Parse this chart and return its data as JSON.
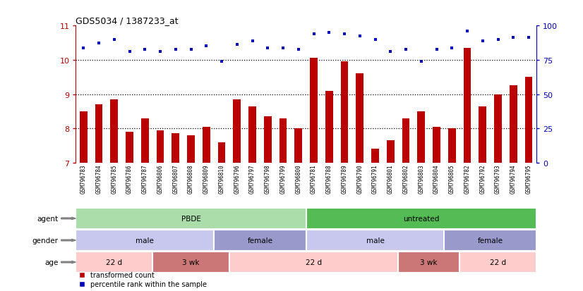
{
  "title": "GDS5034 / 1387233_at",
  "samples": [
    "GSM796783",
    "GSM796784",
    "GSM796785",
    "GSM796786",
    "GSM796787",
    "GSM796806",
    "GSM796807",
    "GSM796808",
    "GSM796809",
    "GSM796810",
    "GSM796796",
    "GSM796797",
    "GSM796798",
    "GSM796799",
    "GSM796800",
    "GSM796781",
    "GSM796788",
    "GSM796789",
    "GSM796790",
    "GSM796791",
    "GSM796801",
    "GSM796802",
    "GSM796803",
    "GSM796804",
    "GSM796805",
    "GSM796782",
    "GSM796792",
    "GSM796793",
    "GSM796794",
    "GSM796795"
  ],
  "bar_values": [
    8.5,
    8.7,
    8.85,
    7.9,
    8.3,
    7.95,
    7.85,
    7.8,
    8.05,
    7.6,
    8.85,
    8.65,
    8.35,
    8.3,
    8.0,
    10.05,
    9.1,
    9.95,
    9.6,
    7.4,
    7.65,
    8.3,
    8.5,
    8.05,
    8.0,
    10.35,
    8.65,
    9.0,
    9.25,
    9.5
  ],
  "percentile_values": [
    10.35,
    10.5,
    10.6,
    10.25,
    10.3,
    10.25,
    10.3,
    10.3,
    10.4,
    9.95,
    10.45,
    10.55,
    10.35,
    10.35,
    10.3,
    10.75,
    10.8,
    10.75,
    10.7,
    10.6,
    10.25,
    10.3,
    9.95,
    10.3,
    10.35,
    10.85,
    10.55,
    10.6,
    10.65,
    10.65
  ],
  "ylim_left": [
    7,
    11
  ],
  "yticks_left": [
    7,
    8,
    9,
    10,
    11
  ],
  "yticks_right": [
    0,
    25,
    50,
    75,
    100
  ],
  "ylim_right": [
    0,
    100
  ],
  "bar_color": "#bb0000",
  "dot_color": "#0000bb",
  "agent_groups": [
    {
      "label": "PBDE",
      "start": 0,
      "end": 15,
      "color": "#aaddaa"
    },
    {
      "label": "untreated",
      "start": 15,
      "end": 30,
      "color": "#55bb55"
    }
  ],
  "gender_groups": [
    {
      "label": "male",
      "start": 0,
      "end": 9,
      "color": "#c8c8ee"
    },
    {
      "label": "female",
      "start": 9,
      "end": 15,
      "color": "#9999cc"
    },
    {
      "label": "male",
      "start": 15,
      "end": 24,
      "color": "#c8c8ee"
    },
    {
      "label": "female",
      "start": 24,
      "end": 30,
      "color": "#9999cc"
    }
  ],
  "age_groups": [
    {
      "label": "22 d",
      "start": 0,
      "end": 5,
      "color": "#ffcccc"
    },
    {
      "label": "3 wk",
      "start": 5,
      "end": 10,
      "color": "#cc7777"
    },
    {
      "label": "22 d",
      "start": 10,
      "end": 21,
      "color": "#ffcccc"
    },
    {
      "label": "3 wk",
      "start": 21,
      "end": 25,
      "color": "#cc7777"
    },
    {
      "label": "22 d",
      "start": 25,
      "end": 30,
      "color": "#ffcccc"
    }
  ],
  "row_labels": [
    "agent",
    "gender",
    "age"
  ],
  "legend_labels": [
    "transformed count",
    "percentile rank within the sample"
  ],
  "legend_colors": [
    "#bb0000",
    "#0000bb"
  ]
}
